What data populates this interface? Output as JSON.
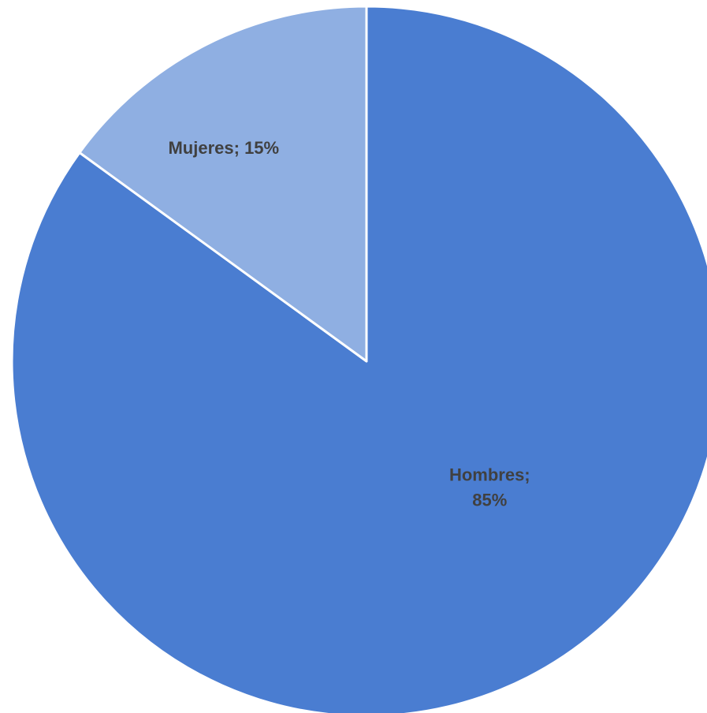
{
  "chart_data": {
    "type": "pie",
    "title": "",
    "start_angle_deg": 0,
    "direction": "clockwise",
    "legend": "none",
    "slices": [
      {
        "category": "Hombres",
        "value": 85,
        "color": "#4a7dd1",
        "label_lines": [
          "Hombres;",
          "85%"
        ]
      },
      {
        "category": "Mujeres",
        "value": 15,
        "color": "#8fafe2",
        "label_lines": [
          "Mujeres; 15%"
        ]
      }
    ]
  }
}
